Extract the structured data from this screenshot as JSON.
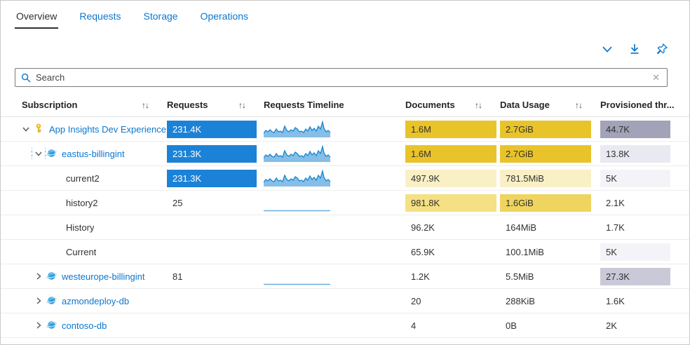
{
  "tabs": [
    {
      "label": "Overview",
      "active": true
    },
    {
      "label": "Requests",
      "active": false
    },
    {
      "label": "Storage",
      "active": false
    },
    {
      "label": "Operations",
      "active": false
    }
  ],
  "toolbar": {
    "icons": [
      {
        "name": "collapse-chevron-icon"
      },
      {
        "name": "download-icon"
      },
      {
        "name": "pin-icon"
      }
    ]
  },
  "search": {
    "placeholder": "Search",
    "clear_icon": "clear-icon"
  },
  "colors": {
    "accent_blue": "#0b77d0",
    "request_bar": "#1b82d7",
    "gold_full": "#e9c32a",
    "gold_medium": "#efd45f",
    "gold_soft": "#f5e084",
    "gold_light": "#faf0c6",
    "lavender_dark": "#a2a2b8",
    "lavender_medium": "#c9c9d8",
    "lavender_light": "#e9e9f1",
    "lavender_xlight": "#f4f4f8",
    "spark_fill": "#86bee7",
    "spark_stroke": "#1e8bd2"
  },
  "table": {
    "columns": [
      {
        "key": "subscription",
        "label": "Subscription",
        "sortable": true
      },
      {
        "key": "requests",
        "label": "Requests",
        "sortable": true
      },
      {
        "key": "timeline",
        "label": "Requests Timeline",
        "sortable": false
      },
      {
        "key": "documents",
        "label": "Documents",
        "sortable": true
      },
      {
        "key": "data_usage",
        "label": "Data Usage",
        "sortable": true
      },
      {
        "key": "provisioned",
        "label": "Provisioned thr...",
        "sortable": false
      }
    ],
    "rows": [
      {
        "label": "App Insights Dev Experience",
        "indent": 0,
        "chevron": "down",
        "chevron_focused": false,
        "icon": "key-icon",
        "link": true,
        "requests": {
          "text": "231.4K",
          "bar": "#1b82d7",
          "text_color": "#ffffff"
        },
        "timeline": "spark",
        "documents": {
          "text": "1.6M",
          "bar": "#e9c32a"
        },
        "data_usage": {
          "text": "2.7GiB",
          "bar": "#e9c32a"
        },
        "provisioned": {
          "text": "44.7K",
          "bar": "#a2a2b8"
        }
      },
      {
        "label": "eastus-billingint",
        "indent": 1,
        "chevron": "down",
        "chevron_focused": true,
        "icon": "cosmos-db-icon",
        "link": true,
        "requests": {
          "text": "231.3K",
          "bar": "#1b82d7",
          "text_color": "#ffffff"
        },
        "timeline": "spark",
        "documents": {
          "text": "1.6M",
          "bar": "#e9c32a"
        },
        "data_usage": {
          "text": "2.7GiB",
          "bar": "#e9c32a"
        },
        "provisioned": {
          "text": "13.8K",
          "bar": "#e9e9f1"
        }
      },
      {
        "label": "current2",
        "indent": 2,
        "chevron": "",
        "chevron_focused": false,
        "icon": "",
        "link": false,
        "requests": {
          "text": "231.3K",
          "bar": "#1b82d7",
          "text_color": "#ffffff"
        },
        "timeline": "spark",
        "documents": {
          "text": "497.9K",
          "bar": "#faf0c6"
        },
        "data_usage": {
          "text": "781.5MiB",
          "bar": "#faf0c6"
        },
        "provisioned": {
          "text": "5K",
          "bar": "#f4f4f8"
        }
      },
      {
        "label": "history2",
        "indent": 2,
        "chevron": "",
        "chevron_focused": false,
        "icon": "",
        "link": false,
        "requests": {
          "text": "25",
          "bar": "",
          "text_color": "#323130"
        },
        "timeline": "flat",
        "documents": {
          "text": "981.8K",
          "bar": "#f5e084"
        },
        "data_usage": {
          "text": "1.6GiB",
          "bar": "#efd45f"
        },
        "provisioned": {
          "text": "2.1K",
          "bar": ""
        }
      },
      {
        "label": "History",
        "indent": 2,
        "chevron": "",
        "chevron_focused": false,
        "icon": "",
        "link": false,
        "requests": {
          "text": "",
          "bar": "",
          "text_color": "#323130"
        },
        "timeline": "",
        "documents": {
          "text": "96.2K",
          "bar": ""
        },
        "data_usage": {
          "text": "164MiB",
          "bar": ""
        },
        "provisioned": {
          "text": "1.7K",
          "bar": ""
        }
      },
      {
        "label": "Current",
        "indent": 2,
        "chevron": "",
        "chevron_focused": false,
        "icon": "",
        "link": false,
        "requests": {
          "text": "",
          "bar": "",
          "text_color": "#323130"
        },
        "timeline": "",
        "documents": {
          "text": "65.9K",
          "bar": ""
        },
        "data_usage": {
          "text": "100.1MiB",
          "bar": ""
        },
        "provisioned": {
          "text": "5K",
          "bar": "#f4f4f8"
        }
      },
      {
        "label": "westeurope-billingint",
        "indent": 1,
        "chevron": "right",
        "chevron_focused": false,
        "icon": "cosmos-db-icon",
        "link": true,
        "requests": {
          "text": "81",
          "bar": "",
          "text_color": "#323130"
        },
        "timeline": "flat",
        "documents": {
          "text": "1.2K",
          "bar": ""
        },
        "data_usage": {
          "text": "5.5MiB",
          "bar": ""
        },
        "provisioned": {
          "text": "27.3K",
          "bar": "#c9c9d8"
        }
      },
      {
        "label": "azmondeploy-db",
        "indent": 1,
        "chevron": "right",
        "chevron_focused": false,
        "icon": "cosmos-db-icon",
        "link": true,
        "requests": {
          "text": "",
          "bar": "",
          "text_color": "#323130"
        },
        "timeline": "",
        "documents": {
          "text": "20",
          "bar": ""
        },
        "data_usage": {
          "text": "288KiB",
          "bar": ""
        },
        "provisioned": {
          "text": "1.6K",
          "bar": ""
        }
      },
      {
        "label": "contoso-db",
        "indent": 1,
        "chevron": "right",
        "chevron_focused": false,
        "icon": "cosmos-db-icon",
        "link": true,
        "requests": {
          "text": "",
          "bar": "",
          "text_color": "#323130"
        },
        "timeline": "",
        "documents": {
          "text": "4",
          "bar": ""
        },
        "data_usage": {
          "text": "0B",
          "bar": ""
        },
        "provisioned": {
          "text": "2K",
          "bar": ""
        }
      }
    ]
  }
}
